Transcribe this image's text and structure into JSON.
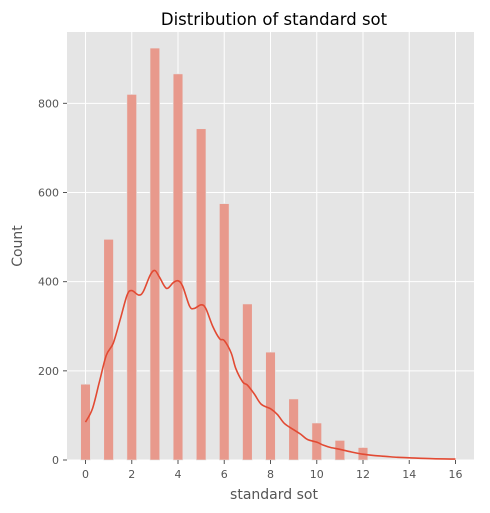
{
  "chart_data": {
    "type": "bar",
    "title": "Distribution of standard sot",
    "xlabel": "standard sot",
    "ylabel": "Count",
    "xlim": [
      -0.8,
      16.8
    ],
    "ylim": [
      0,
      960
    ],
    "grid": true,
    "x_ticks": [
      0,
      2,
      4,
      6,
      8,
      10,
      12,
      14,
      16
    ],
    "y_ticks": [
      0,
      200,
      400,
      600,
      800
    ],
    "bar_width": 0.42,
    "bars": [
      {
        "x": 0,
        "count": 170
      },
      {
        "x": 1,
        "count": 495
      },
      {
        "x": 2,
        "count": 820
      },
      {
        "x": 3,
        "count": 924
      },
      {
        "x": 4,
        "count": 866
      },
      {
        "x": 5,
        "count": 743
      },
      {
        "x": 6,
        "count": 575
      },
      {
        "x": 7,
        "count": 350
      },
      {
        "x": 8,
        "count": 242
      },
      {
        "x": 9,
        "count": 137
      },
      {
        "x": 10,
        "count": 83
      },
      {
        "x": 11,
        "count": 44
      },
      {
        "x": 12,
        "count": 28
      }
    ],
    "kde": [
      [
        0,
        85
      ],
      [
        0.3,
        115
      ],
      [
        0.6,
        175
      ],
      [
        0.9,
        235
      ],
      [
        1.2,
        262
      ],
      [
        1.5,
        315
      ],
      [
        1.8,
        370
      ],
      [
        2.0,
        380
      ],
      [
        2.3,
        370
      ],
      [
        2.5,
        378
      ],
      [
        2.8,
        415
      ],
      [
        3.0,
        425
      ],
      [
        3.2,
        410
      ],
      [
        3.5,
        385
      ],
      [
        3.8,
        398
      ],
      [
        4.0,
        402
      ],
      [
        4.2,
        390
      ],
      [
        4.5,
        345
      ],
      [
        4.7,
        340
      ],
      [
        5.0,
        348
      ],
      [
        5.2,
        340
      ],
      [
        5.5,
        300
      ],
      [
        5.8,
        272
      ],
      [
        6.0,
        268
      ],
      [
        6.3,
        240
      ],
      [
        6.5,
        205
      ],
      [
        6.8,
        175
      ],
      [
        7.0,
        168
      ],
      [
        7.3,
        148
      ],
      [
        7.6,
        125
      ],
      [
        8.0,
        115
      ],
      [
        8.3,
        102
      ],
      [
        8.6,
        82
      ],
      [
        9.0,
        68
      ],
      [
        9.3,
        58
      ],
      [
        9.6,
        46
      ],
      [
        10.0,
        40
      ],
      [
        10.3,
        33
      ],
      [
        10.6,
        28
      ],
      [
        11.0,
        24
      ],
      [
        11.5,
        18
      ],
      [
        12.0,
        13
      ],
      [
        12.5,
        10
      ],
      [
        13.0,
        8
      ],
      [
        13.5,
        6
      ],
      [
        14.0,
        5
      ],
      [
        15.0,
        3
      ],
      [
        16.0,
        2
      ]
    ],
    "colors": {
      "background": "#e5e5e5",
      "grid": "#ffffff",
      "bar": "#e8998c",
      "bar_edge": "#e5e5e5",
      "kde": "#e24a33"
    }
  }
}
